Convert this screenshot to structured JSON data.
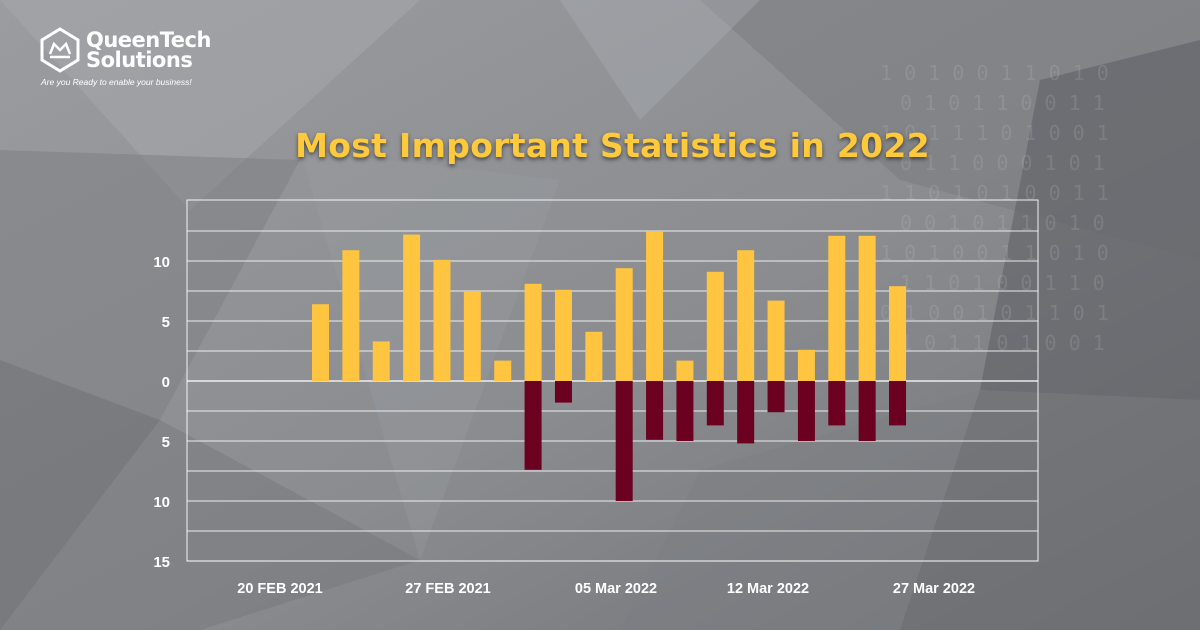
{
  "brand": {
    "name_line1": "QueenTech",
    "name_line2": "Solutions",
    "tagline": "Are you Ready to enable your business!"
  },
  "colors": {
    "positive_bar": "#ffc440",
    "negative_bar": "#6b0020",
    "title": "#ffc93c",
    "grid": "#ffffff",
    "background": "#8d8f93"
  },
  "chart_data": {
    "type": "bar",
    "title": "Most Important Statistics in 2022",
    "ylabel": "",
    "xlabel": "",
    "grid": true,
    "ylim": [
      -15,
      15
    ],
    "y_ticks": [
      {
        "value": 10,
        "label": "10"
      },
      {
        "value": 5,
        "label": "5"
      },
      {
        "value": 0,
        "label": "0"
      },
      {
        "value": -5,
        "label": "5"
      },
      {
        "value": -10,
        "label": "10"
      },
      {
        "value": -15,
        "label": "15"
      }
    ],
    "x_tick_labels": [
      {
        "index": 0,
        "label": "20 FEB 2021"
      },
      {
        "index": 4,
        "label": "27 FEB 2021"
      },
      {
        "index": 10,
        "label": "05 Mar 2022"
      },
      {
        "index": 15,
        "label": "12 Mar 2022"
      },
      {
        "index": 20,
        "label": "27 Mar 2022"
      }
    ],
    "series": [
      {
        "color": "#ffc440",
        "values": [
          6.4,
          10.9,
          3.3,
          12.2,
          10.1,
          7.5,
          1.7,
          8.1,
          7.6,
          4.1,
          9.4,
          12.5,
          1.7,
          9.1,
          10.9,
          6.7,
          2.6,
          12.1,
          12.1,
          7.9
        ]
      },
      {
        "color": "#6b0020",
        "values": [
          0,
          0,
          0,
          0,
          0,
          0,
          0,
          -7.4,
          -1.8,
          0,
          -10,
          -4.9,
          -5,
          -3.7,
          -5.2,
          -2.6,
          -5,
          -3.7,
          -5,
          -3.7
        ]
      }
    ]
  }
}
